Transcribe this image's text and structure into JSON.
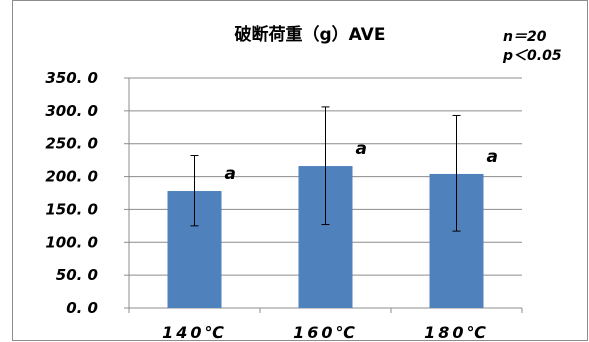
{
  "chart_data": {
    "type": "bar",
    "title": "破断荷重（g）AVE",
    "notes": [
      "n＝20",
      "p＜0.05"
    ],
    "categories": [
      "140℃",
      "160℃",
      "180℃"
    ],
    "values": [
      178,
      216,
      204
    ],
    "error_upper": [
      232,
      306,
      293
    ],
    "error_lower": [
      125,
      127,
      117
    ],
    "significance": [
      "a",
      "a",
      "a"
    ],
    "ylim": [
      0,
      350
    ],
    "yticks": [
      0,
      50,
      100,
      150,
      200,
      250,
      300,
      350
    ],
    "ytick_labels": [
      "0. 0",
      "50. 0",
      "100. 0",
      "150. 0",
      "200. 0",
      "250. 0",
      "300. 0",
      "350. 0"
    ],
    "xlabel": "",
    "ylabel": "",
    "grid": true,
    "bar_color": "#4f81bd"
  }
}
